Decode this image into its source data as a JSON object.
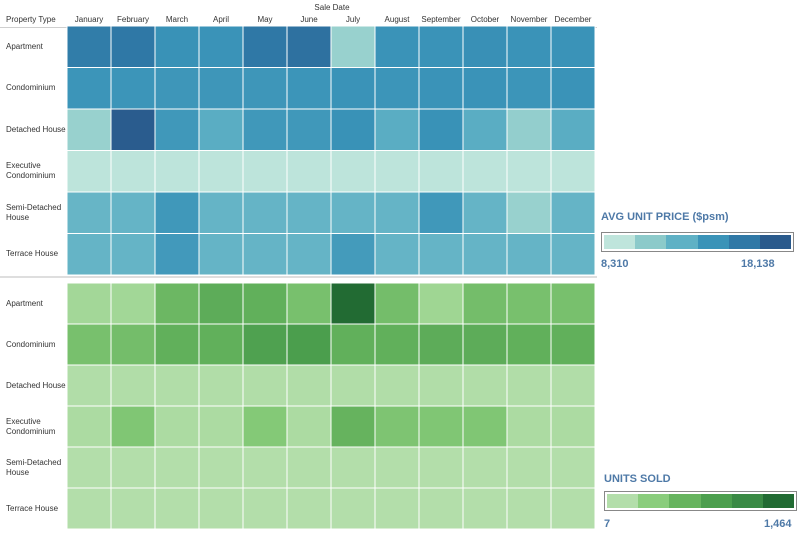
{
  "header": {
    "axis_title": "Sale Date",
    "row_field": "Property Type"
  },
  "months": [
    "January",
    "February",
    "March",
    "April",
    "May",
    "June",
    "July",
    "August",
    "September",
    "October",
    "November",
    "December"
  ],
  "property_types": [
    {
      "line1": "Apartment",
      "line2": ""
    },
    {
      "line1": "Condominium",
      "line2": ""
    },
    {
      "line1": "Detached House",
      "line2": ""
    },
    {
      "line1": "Executive",
      "line2": "Condominium"
    },
    {
      "line1": "Semi-Detached",
      "line2": "House"
    },
    {
      "line1": "Terrace House",
      "line2": ""
    }
  ],
  "legend_price": {
    "title": "AVG UNIT PRICE ($psm)",
    "min_label": "8,310",
    "max_label": "18,138",
    "colors": [
      "#bfe5dc",
      "#8ccaca",
      "#5fb1c5",
      "#3a93b8",
      "#2f78a6",
      "#2a5a8c"
    ]
  },
  "legend_units": {
    "title": "UNITS SOLD",
    "min_label": "7",
    "max_label": "1,464",
    "colors": [
      "#b3deaa",
      "#8acd7c",
      "#67b45f",
      "#4c9f4e",
      "#3a8a45",
      "#226b33"
    ]
  },
  "chart_data": [
    {
      "type": "heatmap",
      "title": "AVG UNIT PRICE ($psm)",
      "xlabel": "Sale Date",
      "ylabel": "Property Type",
      "x": [
        "January",
        "February",
        "March",
        "April",
        "May",
        "June",
        "July",
        "August",
        "September",
        "October",
        "November",
        "December"
      ],
      "y": [
        "Apartment",
        "Condominium",
        "Detached House",
        "Executive Condominium",
        "Semi-Detached House",
        "Terrace House"
      ],
      "range": [
        8310,
        18138
      ],
      "values": [
        [
          15800,
          16200,
          14300,
          14200,
          16200,
          16600,
          9800,
          14200,
          14200,
          14400,
          14200,
          14200
        ],
        [
          14100,
          14100,
          14000,
          14000,
          14000,
          14100,
          14200,
          14100,
          14200,
          14200,
          14100,
          14200
        ],
        [
          9800,
          18000,
          13900,
          12500,
          13900,
          13900,
          14300,
          12500,
          14300,
          12500,
          10000,
          12500
        ],
        [
          8400,
          8400,
          8400,
          8400,
          8400,
          8400,
          8400,
          8400,
          8400,
          8400,
          8400,
          8400
        ],
        [
          11900,
          12000,
          13900,
          12000,
          12000,
          12000,
          12000,
          12000,
          13900,
          12000,
          9800,
          12000
        ],
        [
          12000,
          12000,
          13800,
          12000,
          12000,
          12000,
          13700,
          12000,
          12000,
          12000,
          12000,
          12000
        ]
      ]
    },
    {
      "type": "heatmap",
      "title": "UNITS SOLD",
      "xlabel": "Sale Date",
      "ylabel": "Property Type",
      "x": [
        "January",
        "February",
        "March",
        "April",
        "May",
        "June",
        "July",
        "August",
        "September",
        "October",
        "November",
        "December"
      ],
      "y": [
        "Apartment",
        "Condominium",
        "Detached House",
        "Executive Condominium",
        "Semi-Detached House",
        "Terrace House"
      ],
      "range": [
        7,
        1464
      ],
      "values": [
        [
          120,
          130,
          550,
          700,
          650,
          450,
          1464,
          480,
          150,
          480,
          450,
          450
        ],
        [
          450,
          480,
          650,
          650,
          850,
          900,
          650,
          650,
          700,
          700,
          650,
          650
        ],
        [
          20,
          20,
          20,
          20,
          20,
          20,
          20,
          20,
          20,
          20,
          20,
          20
        ],
        [
          60,
          380,
          60,
          60,
          350,
          60,
          600,
          400,
          380,
          380,
          60,
          60
        ],
        [
          10,
          10,
          10,
          10,
          10,
          10,
          10,
          10,
          10,
          10,
          10,
          10
        ],
        [
          10,
          10,
          10,
          10,
          10,
          10,
          10,
          10,
          10,
          10,
          10,
          10
        ]
      ]
    }
  ]
}
